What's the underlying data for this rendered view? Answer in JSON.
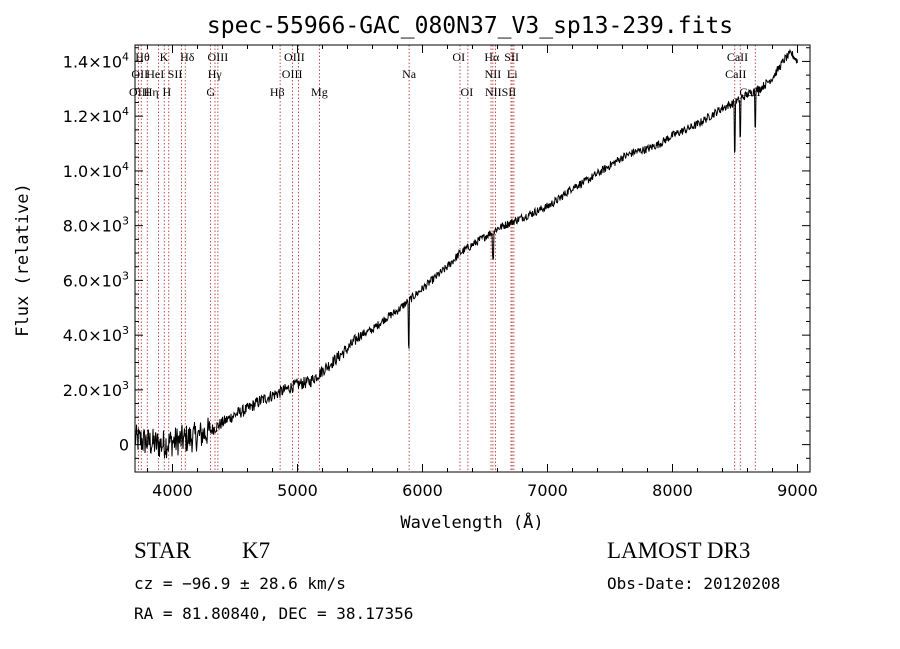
{
  "chart_data": {
    "type": "line",
    "title": "spec-55966-GAC_080N37_V3_sp13-239.fits",
    "xlabel": "Wavelength (Å)",
    "ylabel": "Flux (relative)",
    "xlim": [
      3700,
      9100
    ],
    "ylim": [
      -1000,
      14600
    ],
    "x_ticks": [
      4000,
      5000,
      6000,
      7000,
      8000,
      9000
    ],
    "x_tick_labels": [
      "4000",
      "5000",
      "6000",
      "7000",
      "8000",
      "9000"
    ],
    "y_ticks": [
      0,
      2000,
      4000,
      6000,
      8000,
      10000,
      12000,
      14000
    ],
    "y_tick_labels": [
      {
        "mant": "0",
        "exp": ""
      },
      {
        "mant": "2.0×10",
        "exp": "3"
      },
      {
        "mant": "4.0×10",
        "exp": "3"
      },
      {
        "mant": "6.0×10",
        "exp": "3"
      },
      {
        "mant": "8.0×10",
        "exp": "3"
      },
      {
        "mant": "1.0×10",
        "exp": "4"
      },
      {
        "mant": "1.2×10",
        "exp": "4"
      },
      {
        "mant": "1.4×10",
        "exp": "4"
      }
    ],
    "series": [
      {
        "name": "spectrum",
        "x": [
          3700,
          3800,
          3900,
          4000,
          4100,
          4200,
          4300,
          4400,
          4500,
          4600,
          4700,
          4800,
          4900,
          5000,
          5100,
          5200,
          5300,
          5400,
          5500,
          5600,
          5700,
          5800,
          5900,
          6000,
          6100,
          6200,
          6300,
          6400,
          6500,
          6600,
          6700,
          6800,
          6900,
          7000,
          7100,
          7200,
          7300,
          7400,
          7500,
          7600,
          7700,
          7800,
          7900,
          8000,
          8100,
          8200,
          8300,
          8400,
          8500,
          8600,
          8700,
          8800,
          8900,
          8950,
          9000
        ],
        "y": [
          200,
          100,
          0,
          100,
          200,
          300,
          500,
          800,
          1100,
          1300,
          1600,
          1800,
          2000,
          2200,
          2300,
          2700,
          3100,
          3500,
          4000,
          4200,
          4600,
          4900,
          5300,
          5700,
          6100,
          6500,
          7000,
          7300,
          7600,
          7900,
          8100,
          8300,
          8500,
          8700,
          9000,
          9400,
          9600,
          9900,
          10200,
          10500,
          10700,
          10800,
          11000,
          11300,
          11500,
          11700,
          12000,
          12300,
          12500,
          12800,
          13000,
          13400,
          14100,
          14300,
          14000
        ]
      }
    ],
    "absorption_dips": [
      {
        "x": 5890,
        "depth": 1700
      },
      {
        "x": 6563,
        "depth": 900
      },
      {
        "x": 8498,
        "depth": 1800
      },
      {
        "x": 8542,
        "depth": 1400
      },
      {
        "x": 8662,
        "depth": 1200
      }
    ],
    "line_markers": [
      {
        "x": 3727,
        "label": "OII"
      },
      {
        "x": 3750,
        "label": "Hθ"
      },
      {
        "x": 3798,
        "label": "Hη"
      },
      {
        "x": 3889,
        "label": "HeI"
      },
      {
        "x": 3934,
        "label": "K"
      },
      {
        "x": 3970,
        "label": "H"
      },
      {
        "x": 4072,
        "label": "SII"
      },
      {
        "x": 4102,
        "label": "Hδ"
      },
      {
        "x": 4304,
        "label": "G"
      },
      {
        "x": 4340,
        "label": "Hγ"
      },
      {
        "x": 4363,
        "label": "OIII"
      },
      {
        "x": 4861,
        "label": "Hβ"
      },
      {
        "x": 4959,
        "label": "OIII"
      },
      {
        "x": 5007,
        "label": "OIII"
      },
      {
        "x": 5175,
        "label": "Mg"
      },
      {
        "x": 5893,
        "label": "Na"
      },
      {
        "x": 6300,
        "label": "OI"
      },
      {
        "x": 6363,
        "label": "OI"
      },
      {
        "x": 6548,
        "label": "NII"
      },
      {
        "x": 6563,
        "label": "Hα"
      },
      {
        "x": 6583,
        "label": "NII"
      },
      {
        "x": 6708,
        "label": "Li"
      },
      {
        "x": 6717,
        "label": "SII"
      },
      {
        "x": 6731,
        "label": "SII"
      },
      {
        "x": 8498,
        "label": "CaII"
      },
      {
        "x": 8542,
        "label": "CaII"
      },
      {
        "x": 8662,
        "label": "CaII"
      }
    ],
    "marker_label_rows": [
      [
        {
          "x": 3760,
          "label": "Hθ"
        },
        {
          "x": 3932,
          "label": "K"
        },
        {
          "x": 4118,
          "label": "Hδ"
        },
        {
          "x": 4363,
          "label": "OIII"
        },
        {
          "x": 4975,
          "label": "OIII"
        },
        {
          "x": 6290,
          "label": "OI"
        },
        {
          "x": 6555,
          "label": "Hα"
        },
        {
          "x": 6713,
          "label": "SII"
        },
        {
          "x": 8520,
          "label": "CaII"
        }
      ],
      [
        {
          "x": 3738,
          "label": "OII"
        },
        {
          "x": 3862,
          "label": "HeI"
        },
        {
          "x": 4020,
          "label": "SII"
        },
        {
          "x": 4338,
          "label": "Hγ"
        },
        {
          "x": 4957,
          "label": "OIII"
        },
        {
          "x": 5893,
          "label": "Na"
        },
        {
          "x": 6563,
          "label": "NII"
        },
        {
          "x": 6718,
          "label": "Li"
        },
        {
          "x": 8506,
          "label": "CaII"
        }
      ],
      [
        {
          "x": 3735,
          "label": "OIII"
        },
        {
          "x": 3830,
          "label": "Hη"
        },
        {
          "x": 3955,
          "label": "H"
        },
        {
          "x": 4306,
          "label": "G"
        },
        {
          "x": 4838,
          "label": "Hβ"
        },
        {
          "x": 5175,
          "label": "Mg"
        },
        {
          "x": 6355,
          "label": "OI"
        },
        {
          "x": 6625,
          "label": "NIISII"
        },
        {
          "x": 8620,
          "label": "CaII"
        }
      ]
    ]
  },
  "info": {
    "object_class": "STAR",
    "subclass": "K7",
    "survey": "LAMOST DR3",
    "redshift": "cz = −96.9 ± 28.6 km/s",
    "obs_date": "Obs-Date: 20120208",
    "coords": "RA =  81.80840, DEC =  38.17356"
  },
  "colors": {
    "axis": "#000000",
    "marker_line": "#b22222",
    "spectrum": "#000000",
    "background": "#ffffff"
  }
}
